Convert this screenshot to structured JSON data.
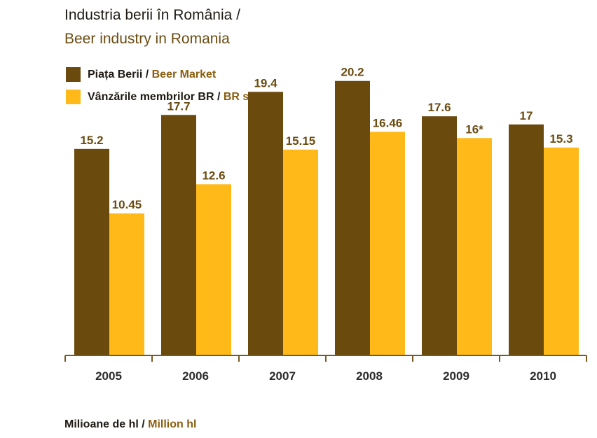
{
  "title": {
    "line1": "Industria berii în România /",
    "line2": "Beer industry in Romania"
  },
  "legend": [
    {
      "label_ro": "Piața Berii",
      "sep": " / ",
      "label_en": "Beer Market",
      "color": "#6b4a0e"
    },
    {
      "label_ro": "Vânzările membrilor BR",
      "sep": " / ",
      "label_en": "BR sales",
      "color": "#ffba1a"
    }
  ],
  "units": {
    "ro": "Milioane de hl",
    "sep": " / ",
    "en": "Million hl"
  },
  "colors": {
    "axis": "#7a5a1c",
    "label": "#6b4c12",
    "tick": "#2b2b2b"
  },
  "chart_data": {
    "type": "bar",
    "title": "Industria berii în România / Beer industry in Romania",
    "xlabel": "",
    "ylabel": "Milioane de hl / Million hl",
    "categories": [
      "2005",
      "2006",
      "2007",
      "2008",
      "2009",
      "2010"
    ],
    "ylim": [
      0,
      25
    ],
    "grid": false,
    "legend_position": "top-left",
    "series": [
      {
        "name": "Piața Berii / Beer Market",
        "values": [
          15.2,
          17.7,
          19.4,
          20.2,
          17.6,
          17
        ],
        "labels": [
          "15.2",
          "17.7",
          "19.4",
          "20.2",
          "17.6",
          "17"
        ],
        "color": "#6b4a0e"
      },
      {
        "name": "Vânzările membrilor BR / BR sales",
        "values": [
          10.45,
          12.6,
          15.15,
          16.46,
          16,
          15.3
        ],
        "labels": [
          "10.45",
          "12.6",
          "15.15",
          "16.46",
          "16*",
          "15.3"
        ],
        "color": "#ffba1a"
      }
    ]
  }
}
